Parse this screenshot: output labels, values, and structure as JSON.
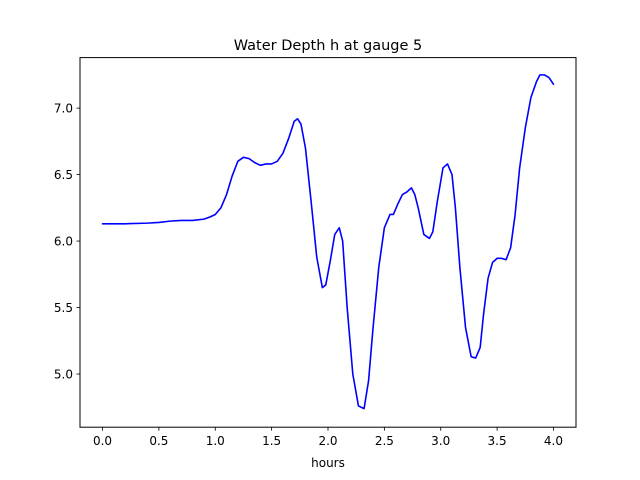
{
  "chart_data": {
    "type": "line",
    "title": "Water Depth h at gauge 5",
    "xlabel": "hours",
    "ylabel": "",
    "xlim": [
      -0.2,
      4.2
    ],
    "ylim": [
      4.6,
      7.38
    ],
    "xticks": [
      0.0,
      0.5,
      1.0,
      1.5,
      2.0,
      2.5,
      3.0,
      3.5,
      4.0
    ],
    "xtick_labels": [
      "0.0",
      "0.5",
      "1.0",
      "1.5",
      "2.0",
      "2.5",
      "3.0",
      "3.5",
      "4.0"
    ],
    "yticks": [
      5.0,
      5.5,
      6.0,
      6.5,
      7.0
    ],
    "ytick_labels": [
      "5.0",
      "5.5",
      "6.0",
      "6.5",
      "7.0"
    ],
    "grid": false,
    "legend": "none",
    "series": [
      {
        "color": "#0000ff",
        "x": [
          0.0,
          0.2,
          0.4,
          0.5,
          0.6,
          0.7,
          0.8,
          0.9,
          0.95,
          1.0,
          1.05,
          1.1,
          1.15,
          1.2,
          1.25,
          1.3,
          1.35,
          1.4,
          1.45,
          1.5,
          1.55,
          1.6,
          1.65,
          1.7,
          1.73,
          1.76,
          1.8,
          1.85,
          1.9,
          1.95,
          1.98,
          2.02,
          2.06,
          2.1,
          2.13,
          2.17,
          2.22,
          2.27,
          2.32,
          2.36,
          2.4,
          2.45,
          2.5,
          2.55,
          2.58,
          2.62,
          2.66,
          2.7,
          2.74,
          2.77,
          2.8,
          2.85,
          2.9,
          2.93,
          2.97,
          3.02,
          3.06,
          3.1,
          3.13,
          3.17,
          3.22,
          3.27,
          3.31,
          3.35,
          3.38,
          3.42,
          3.46,
          3.5,
          3.54,
          3.58,
          3.62,
          3.66,
          3.7,
          3.75,
          3.8,
          3.85,
          3.88,
          3.92,
          3.96,
          4.0
        ],
        "y": [
          6.13,
          6.13,
          6.135,
          6.14,
          6.15,
          6.155,
          6.155,
          6.165,
          6.18,
          6.2,
          6.25,
          6.35,
          6.49,
          6.6,
          6.63,
          6.62,
          6.59,
          6.57,
          6.58,
          6.58,
          6.6,
          6.66,
          6.77,
          6.9,
          6.92,
          6.88,
          6.7,
          6.3,
          5.88,
          5.65,
          5.67,
          5.85,
          6.05,
          6.1,
          6.0,
          5.5,
          5.0,
          4.76,
          4.74,
          4.95,
          5.35,
          5.8,
          6.1,
          6.2,
          6.2,
          6.28,
          6.35,
          6.37,
          6.4,
          6.35,
          6.25,
          6.05,
          6.02,
          6.07,
          6.3,
          6.55,
          6.58,
          6.5,
          6.25,
          5.8,
          5.35,
          5.13,
          5.12,
          5.2,
          5.45,
          5.72,
          5.84,
          5.87,
          5.87,
          5.86,
          5.95,
          6.2,
          6.55,
          6.85,
          7.08,
          7.2,
          7.25,
          7.25,
          7.23,
          7.18
        ]
      }
    ]
  }
}
